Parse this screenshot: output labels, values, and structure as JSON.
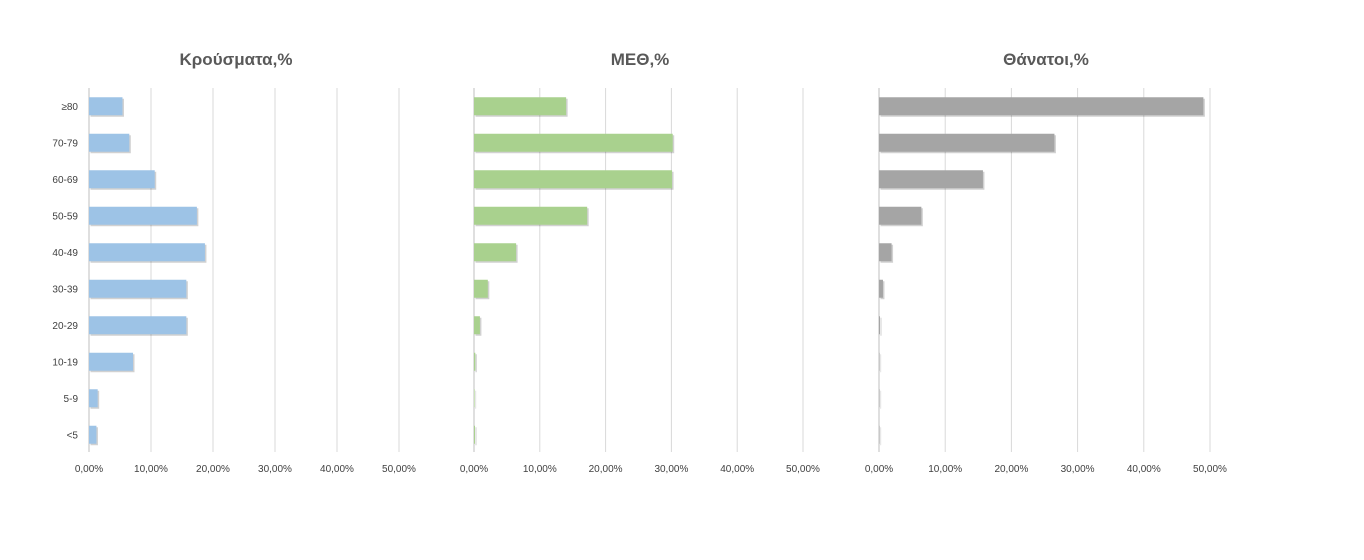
{
  "chart_data": [
    {
      "type": "bar",
      "orientation": "horizontal",
      "title": "Κρούσματα,%",
      "color": "#9dc3e6",
      "categories": [
        "≥80",
        "70-79",
        "60-69",
        "50-59",
        "40-49",
        "30-39",
        "20-29",
        "10-19",
        "5-9",
        "<5"
      ],
      "values": [
        5.4,
        6.5,
        10.6,
        17.4,
        18.7,
        15.7,
        15.7,
        7.1,
        1.4,
        1.2
      ],
      "xlim": [
        0,
        50
      ],
      "xticks": [
        "0,00%",
        "10,00%",
        "20,00%",
        "30,00%",
        "40,00%",
        "50,00%"
      ],
      "grid": true
    },
    {
      "type": "bar",
      "orientation": "horizontal",
      "title": "ΜΕΘ,%",
      "color": "#a9d18e",
      "categories": [
        "≥80",
        "70-79",
        "60-69",
        "50-59",
        "40-49",
        "30-39",
        "20-29",
        "10-19",
        "5-9",
        "<5"
      ],
      "values": [
        14.0,
        30.2,
        30.1,
        17.2,
        6.4,
        2.1,
        0.9,
        0.2,
        0.0,
        0.1
      ],
      "xlim": [
        0,
        50
      ],
      "xticks": [
        "0,00%",
        "10,00%",
        "20,00%",
        "30,00%",
        "40,00%",
        "50,00%"
      ],
      "grid": true
    },
    {
      "type": "bar",
      "orientation": "horizontal",
      "title": "Θάνατοι,%",
      "color": "#a5a5a5",
      "categories": [
        "≥80",
        "70-79",
        "60-69",
        "50-59",
        "40-49",
        "30-39",
        "20-29",
        "10-19",
        "5-9",
        "<5"
      ],
      "values": [
        49.0,
        26.5,
        15.7,
        6.4,
        1.9,
        0.6,
        0.1,
        0.0,
        0.0,
        0.0
      ],
      "xlim": [
        0,
        50
      ],
      "xticks": [
        "0,00%",
        "10,00%",
        "20,00%",
        "30,00%",
        "40,00%",
        "50,00%"
      ],
      "grid": true
    }
  ]
}
